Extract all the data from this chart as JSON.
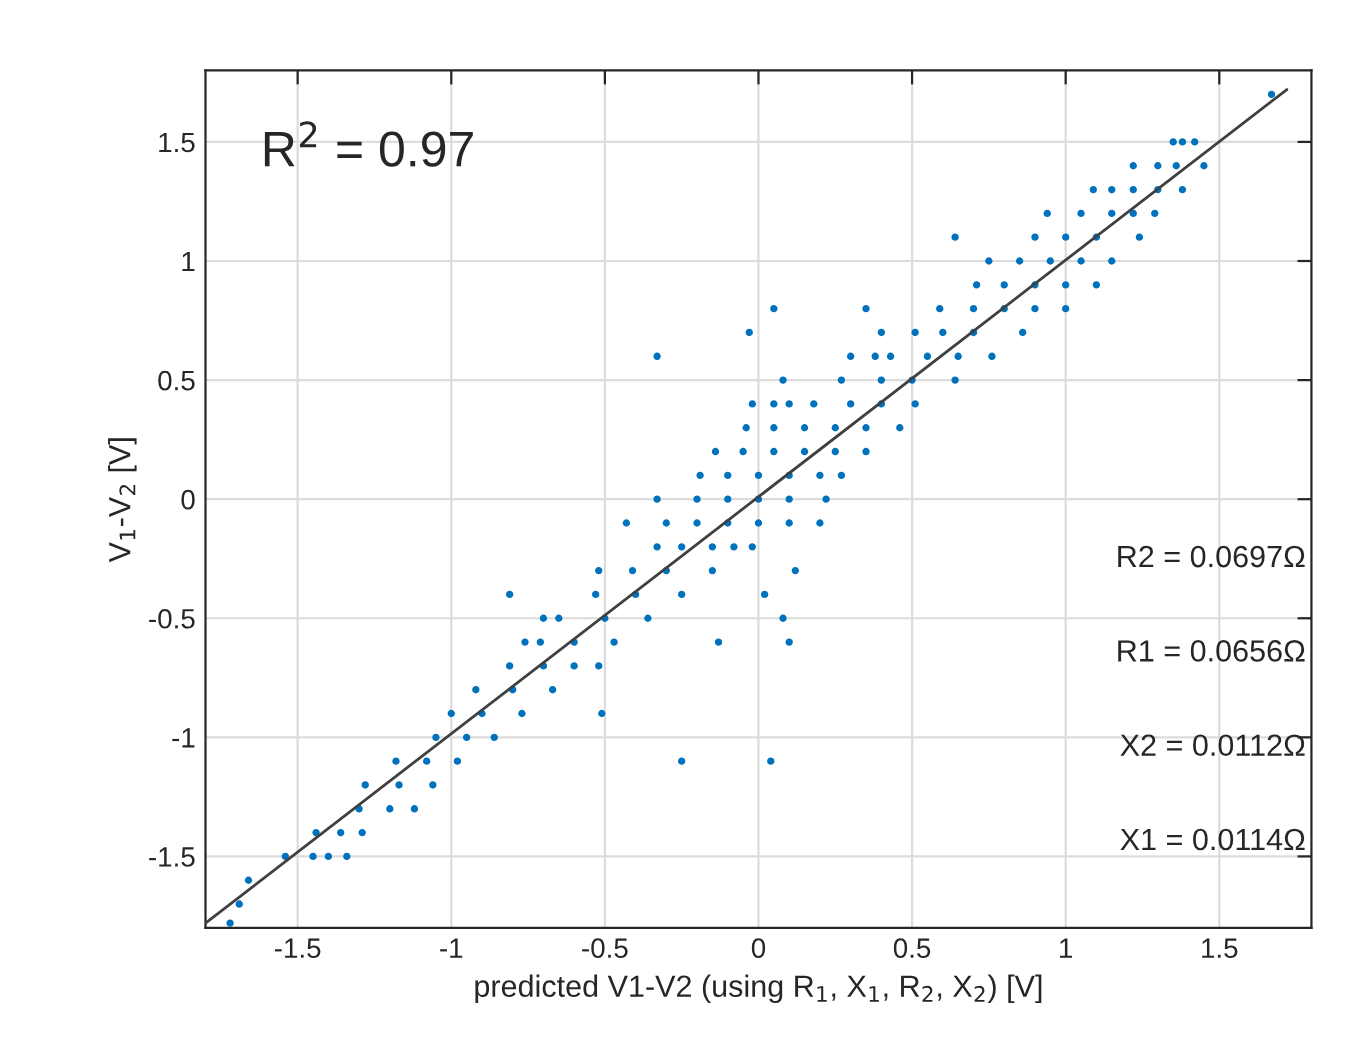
{
  "chart_data": {
    "type": "scatter",
    "xlabel": "predicted V1-V2 (using R$_{1}$, X$_{1}$, R$_{2}$, X$_{2}$) [V]",
    "ylabel": "V$_{1}$-V$_{2}$ [V]",
    "annotations": [
      "R$^{2}$ = 0.97",
      "R2 = 0.0697Ω",
      "R1 = 0.0656Ω",
      "X2 = 0.0112Ω",
      "X1 = 0.0114Ω"
    ],
    "xlim": [
      -1.8,
      1.8
    ],
    "ylim": [
      -1.8,
      1.8
    ],
    "xticks": [
      -1.5,
      -1,
      -0.5,
      0,
      0.5,
      1,
      1.5
    ],
    "yticks": [
      -1.5,
      -1,
      -0.5,
      0,
      0.5,
      1,
      1.5
    ],
    "grid": true,
    "series": [
      {
        "color": "#0072bd",
        "marker": "circle",
        "x": [
          1.67,
          1.35,
          1.38,
          1.42,
          1.22,
          1.3,
          1.36,
          1.45,
          1.09,
          1.15,
          1.22,
          1.3,
          1.38,
          0.94,
          1.05,
          1.15,
          1.22,
          1.29,
          0.64,
          0.9,
          1.0,
          1.1,
          1.24,
          0.75,
          0.85,
          0.95,
          1.05,
          1.15,
          0.71,
          0.8,
          0.9,
          1.0,
          1.1,
          0.05,
          0.35,
          0.59,
          0.7,
          0.8,
          0.9,
          1.0,
          -0.03,
          0.4,
          0.51,
          0.6,
          0.7,
          0.86,
          -0.33,
          0.3,
          0.38,
          0.43,
          0.55,
          0.65,
          0.76,
          0.08,
          0.27,
          0.4,
          0.5,
          0.64,
          -0.02,
          0.05,
          0.1,
          0.18,
          0.3,
          0.4,
          0.51,
          -0.04,
          0.05,
          0.15,
          0.25,
          0.35,
          0.46,
          -0.14,
          -0.05,
          0.05,
          0.15,
          0.25,
          0.35,
          -0.19,
          -0.1,
          0.0,
          0.1,
          0.2,
          0.27,
          -0.33,
          -0.2,
          -0.1,
          0.0,
          0.1,
          0.22,
          -0.43,
          -0.3,
          -0.2,
          -0.1,
          0.0,
          0.1,
          0.2,
          -0.33,
          -0.25,
          -0.15,
          -0.08,
          -0.02,
          -0.52,
          -0.41,
          -0.3,
          -0.15,
          0.12,
          -0.81,
          -0.53,
          -0.4,
          -0.25,
          0.02,
          -0.7,
          -0.65,
          -0.5,
          -0.36,
          0.08,
          -0.76,
          -0.71,
          -0.6,
          -0.47,
          -0.13,
          0.1,
          -0.81,
          -0.7,
          -0.6,
          -0.52,
          -0.92,
          -0.8,
          -0.67,
          -1.0,
          -0.9,
          -0.77,
          -0.51,
          -1.05,
          -0.95,
          -0.86,
          -1.18,
          -1.08,
          -0.98,
          -0.25,
          0.04,
          -1.28,
          -1.17,
          -1.06,
          -1.3,
          -1.2,
          -1.12,
          -1.44,
          -1.36,
          -1.29,
          -1.54,
          -1.45,
          -1.4,
          -1.34,
          -1.66,
          -1.69,
          -1.72
        ],
        "values": [
          1.7,
          1.5,
          1.5,
          1.5,
          1.4,
          1.4,
          1.4,
          1.4,
          1.3,
          1.3,
          1.3,
          1.3,
          1.3,
          1.2,
          1.2,
          1.2,
          1.2,
          1.2,
          1.1,
          1.1,
          1.1,
          1.1,
          1.1,
          1.0,
          1.0,
          1.0,
          1.0,
          1.0,
          0.9,
          0.9,
          0.9,
          0.9,
          0.9,
          0.8,
          0.8,
          0.8,
          0.8,
          0.8,
          0.8,
          0.8,
          0.7,
          0.7,
          0.7,
          0.7,
          0.7,
          0.7,
          0.6,
          0.6,
          0.6,
          0.6,
          0.6,
          0.6,
          0.6,
          0.5,
          0.5,
          0.5,
          0.5,
          0.5,
          0.4,
          0.4,
          0.4,
          0.4,
          0.4,
          0.4,
          0.4,
          0.3,
          0.3,
          0.3,
          0.3,
          0.3,
          0.3,
          0.2,
          0.2,
          0.2,
          0.2,
          0.2,
          0.2,
          0.1,
          0.1,
          0.1,
          0.1,
          0.1,
          0.1,
          0.0,
          0.0,
          0.0,
          0.0,
          0.0,
          0.0,
          -0.1,
          -0.1,
          -0.1,
          -0.1,
          -0.1,
          -0.1,
          -0.1,
          -0.2,
          -0.2,
          -0.2,
          -0.2,
          -0.2,
          -0.3,
          -0.3,
          -0.3,
          -0.3,
          -0.3,
          -0.4,
          -0.4,
          -0.4,
          -0.4,
          -0.4,
          -0.5,
          -0.5,
          -0.5,
          -0.5,
          -0.5,
          -0.6,
          -0.6,
          -0.6,
          -0.6,
          -0.6,
          -0.6,
          -0.7,
          -0.7,
          -0.7,
          -0.7,
          -0.8,
          -0.8,
          -0.8,
          -0.9,
          -0.9,
          -0.9,
          -0.9,
          -1.0,
          -1.0,
          -1.0,
          -1.1,
          -1.1,
          -1.1,
          -1.1,
          -1.1,
          -1.2,
          -1.2,
          -1.2,
          -1.3,
          -1.3,
          -1.3,
          -1.4,
          -1.4,
          -1.4,
          -1.5,
          -1.5,
          -1.5,
          -1.5,
          -1.6,
          -1.7,
          -1.78
        ]
      },
      {
        "type": "line",
        "color": "#404040",
        "x": [
          -1.8,
          1.72
        ],
        "values": [
          -1.78,
          1.72
        ]
      }
    ]
  }
}
